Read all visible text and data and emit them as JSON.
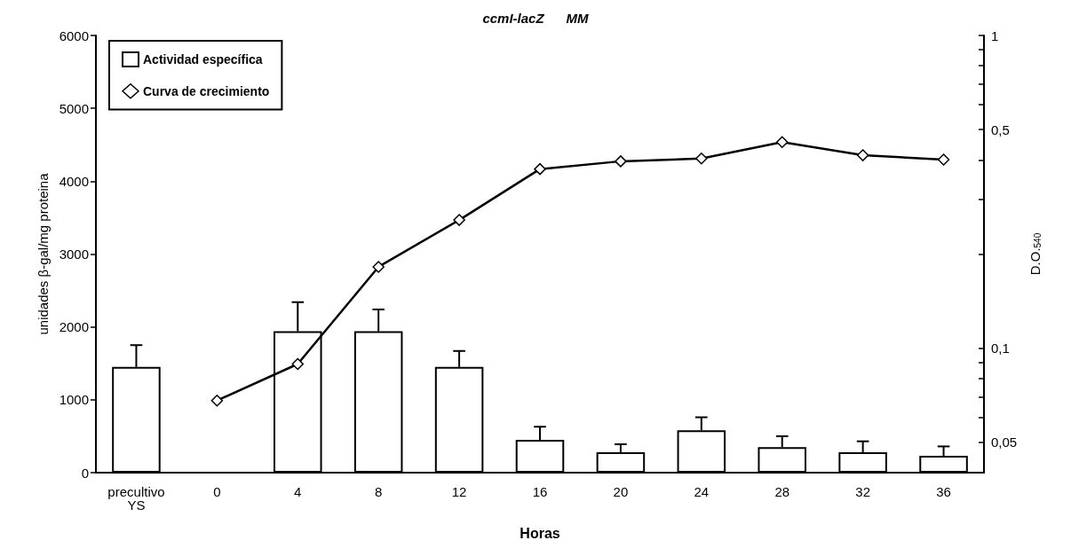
{
  "chart_data": {
    "type": "bar",
    "title": "ccmI-lacZ      MM",
    "xlabel": "Horas",
    "ylabel": "unidades β-gal/mg proteina",
    "y2label": "D.O.$_{540}$",
    "categories": [
      "precultivo\nYS",
      "0",
      "4",
      "8",
      "12",
      "16",
      "20",
      "24",
      "28",
      "32",
      "36"
    ],
    "series": [
      {
        "name": "Actividad específica",
        "color": "#ffffff",
        "values": [
          1450,
          null,
          1940,
          1940,
          1450,
          450,
          280,
          580,
          350,
          280,
          230
        ],
        "errors": [
          [
            1450,
            1750
          ],
          null,
          [
            1940,
            2340
          ],
          [
            1940,
            2240
          ],
          [
            1450,
            1670
          ],
          [
            450,
            630
          ],
          [
            280,
            390
          ],
          [
            580,
            760
          ],
          [
            350,
            500
          ],
          [
            280,
            430
          ],
          [
            230,
            360
          ]
        ]
      },
      {
        "name": "Curva de crecimiento",
        "type": "line",
        "axis": "y2",
        "color": "#000000",
        "marker": "diamond",
        "values": [
          null,
          0.068,
          0.089,
          0.182,
          0.257,
          0.374,
          0.396,
          0.404,
          0.456,
          0.414,
          0.401
        ]
      }
    ],
    "ylim": [
      0,
      6000
    ],
    "yticks": [
      0,
      1000,
      2000,
      3000,
      4000,
      5000,
      6000
    ],
    "y2lim": [
      0.04,
      1
    ],
    "log": "y2",
    "y2ticks": [
      {
        "value": 0.05,
        "label": "0,05"
      },
      {
        "value": 0.06,
        "label": null
      },
      {
        "value": 0.07,
        "label": null
      },
      {
        "value": 0.08,
        "label": null
      },
      {
        "value": 0.09,
        "label": null
      },
      {
        "value": 0.1,
        "label": "0,1"
      },
      {
        "value": 0.2,
        "label": null
      },
      {
        "value": 0.3,
        "label": null
      },
      {
        "value": 0.4,
        "label": null
      },
      {
        "value": 0.5,
        "label": "0,5"
      },
      {
        "value": 0.6,
        "label": null
      },
      {
        "value": 0.7,
        "label": null
      },
      {
        "value": 0.8,
        "label": null
      },
      {
        "value": 0.9,
        "label": null
      },
      {
        "value": 1,
        "label": "1"
      }
    ],
    "grid": false,
    "legend": "top left"
  }
}
